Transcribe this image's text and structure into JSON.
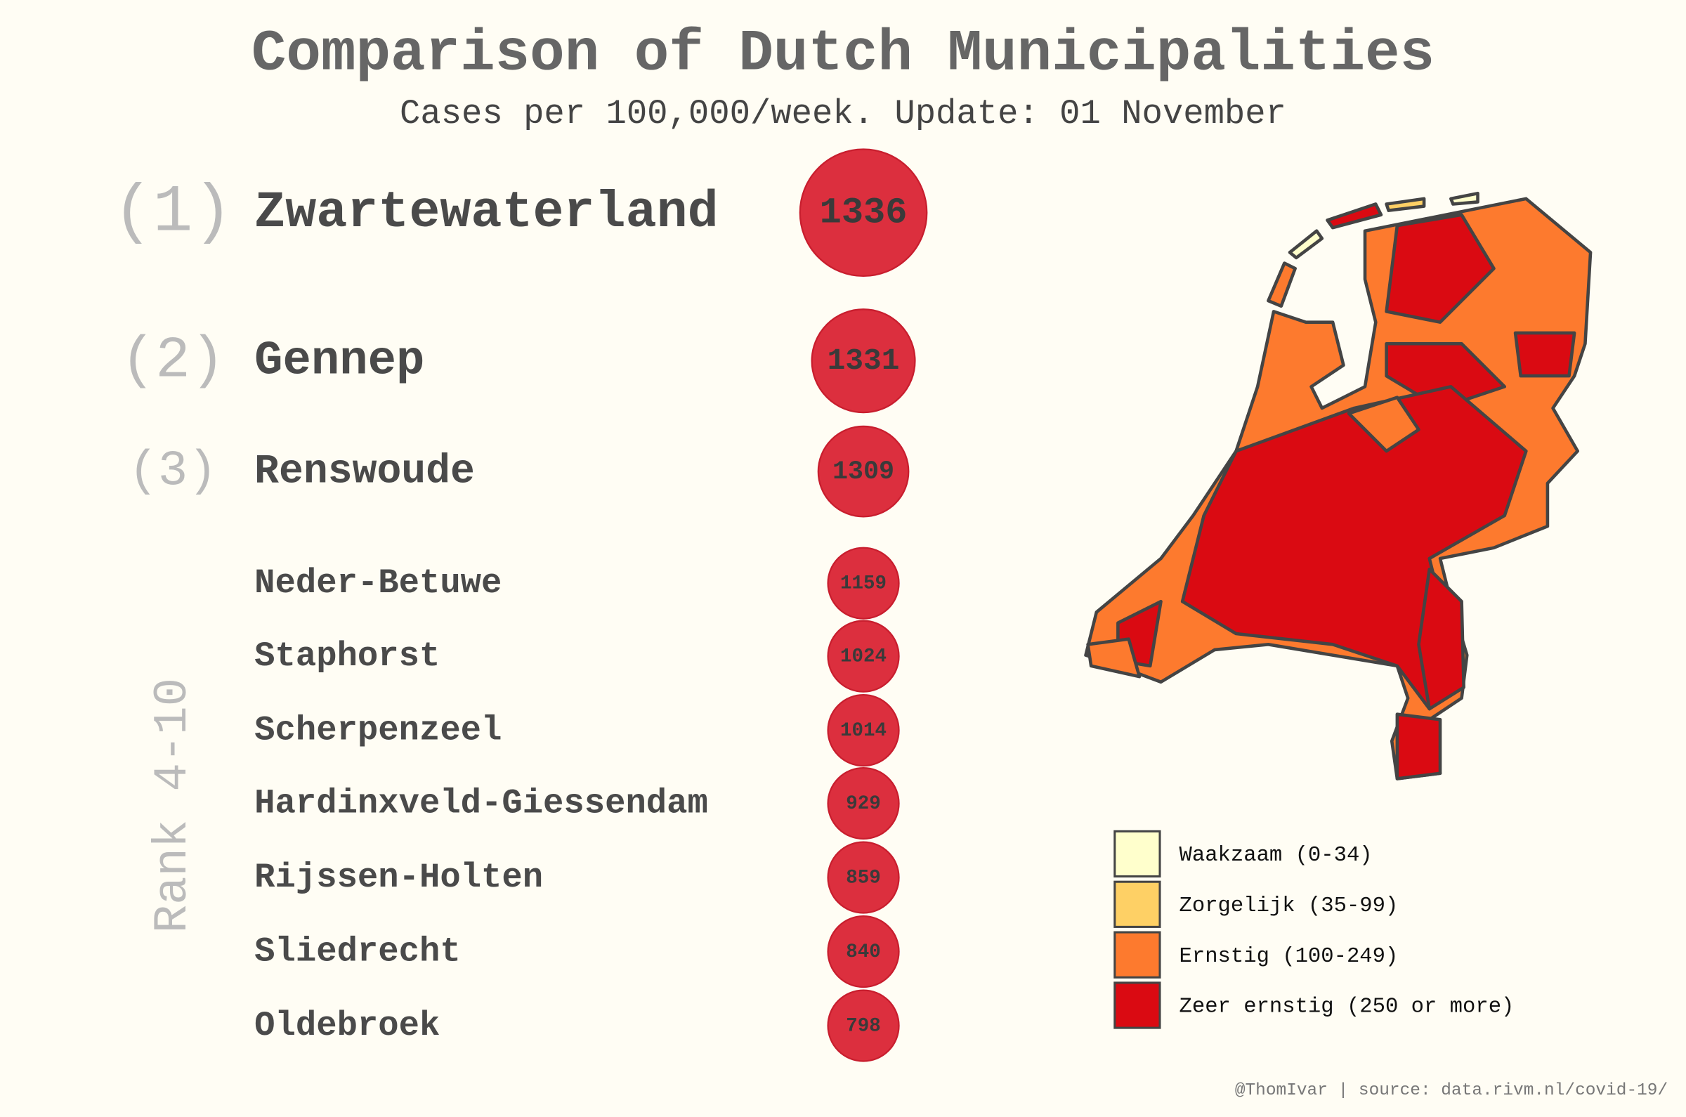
{
  "chart_data": {
    "type": "ranking",
    "title": "Comparison of Dutch Municipalities",
    "subtitle": "Cases per 100,000/week. Update: 01 November",
    "ranks": [
      "(1)",
      "(2)",
      "(3)"
    ],
    "group_label": "Rank 4-10",
    "categories": [
      "Zwartewaterland",
      "Gennep",
      "Renswoude",
      "Neder-Betuwe",
      "Staphorst",
      "Scherpenzeel",
      "Hardinxveld-Giessendam",
      "Rijssen-Holten",
      "Sliedrecht",
      "Oldebroek"
    ],
    "values": [
      1336,
      1331,
      1309,
      1159,
      1024,
      1014,
      929,
      859,
      840,
      798
    ],
    "color": "#dc2f3e",
    "legend": [
      {
        "label": "Waakzaam (0-34)",
        "color": "#ffffcc"
      },
      {
        "label": "Zorgelijk (35-99)",
        "color": "#fed065"
      },
      {
        "label": "Ernstig (100-249)",
        "color": "#fd7a2e"
      },
      {
        "label": "Zeer ernstig (250 or more)",
        "color": "#da0a12"
      }
    ],
    "source": "@ThomIvar | source: data.rivm.nl/covid-19/"
  }
}
